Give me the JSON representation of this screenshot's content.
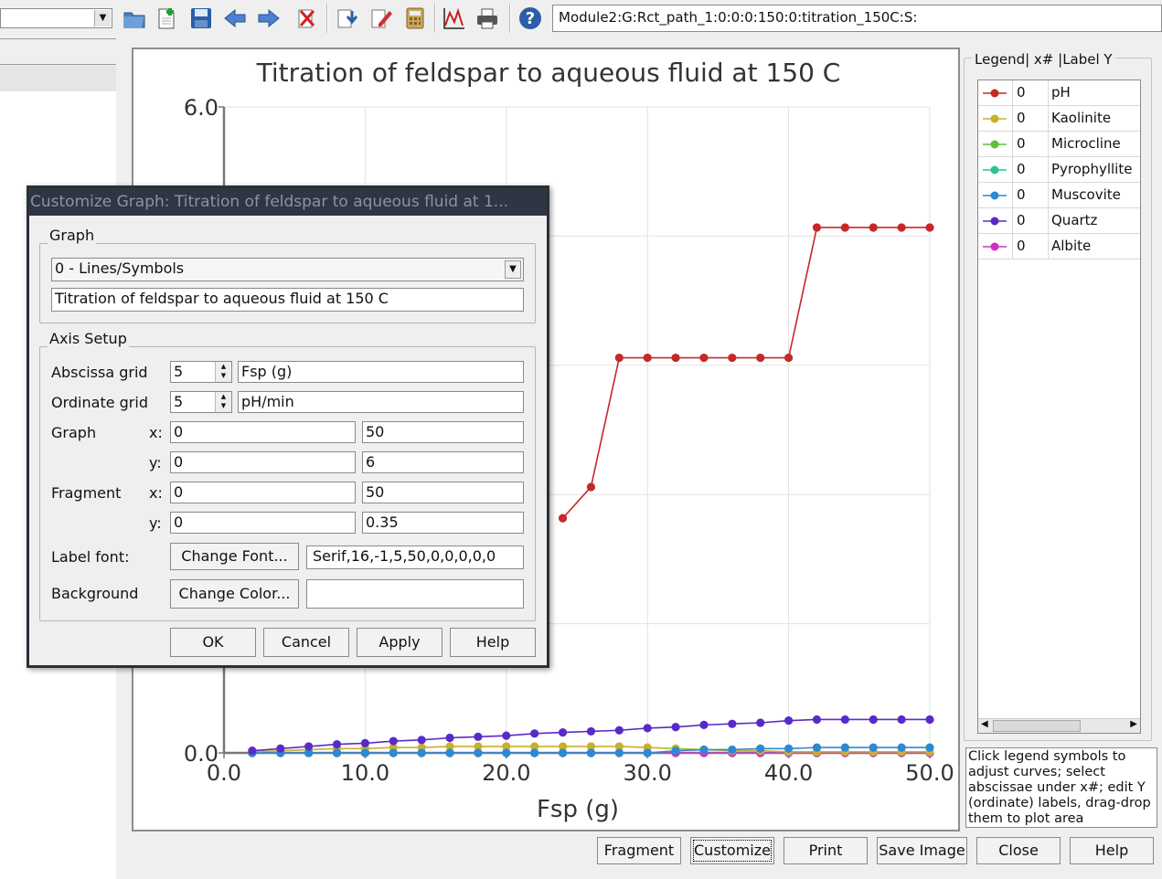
{
  "toolbar": {
    "path": "Module2:G:Rct_path_1:0:0:0:150:0:titration_150C:S:"
  },
  "chart_data": {
    "type": "line",
    "title": "Titration of feldspar to aqueous fluid at 150 C",
    "xlabel": "Fsp (g)",
    "ylabel": "",
    "xlim": [
      0,
      50
    ],
    "ylim": [
      0,
      6
    ],
    "x_ticks": [
      "0.0",
      "10.0",
      "20.0",
      "30.0",
      "40.0",
      "50.0"
    ],
    "y_ticks": [
      "0.0",
      "6.0"
    ],
    "grid": true,
    "x": [
      2,
      4,
      6,
      8,
      10,
      12,
      14,
      16,
      18,
      20,
      22,
      24,
      26,
      28,
      30,
      32,
      34,
      36,
      38,
      40,
      42,
      44,
      46,
      48,
      50
    ],
    "series": [
      {
        "name": "pH",
        "color": "#c62828",
        "values": [
          null,
          null,
          null,
          null,
          null,
          null,
          null,
          null,
          null,
          null,
          null,
          2.18,
          2.47,
          3.67,
          3.67,
          3.67,
          3.67,
          3.67,
          3.67,
          3.67,
          4.88,
          4.88,
          4.88,
          4.88,
          4.88
        ]
      },
      {
        "name": "Kaolinite",
        "color": "#c8b030",
        "values": [
          0.01,
          0.02,
          0.03,
          0.04,
          0.04,
          0.05,
          0.05,
          0.06,
          0.06,
          0.06,
          0.06,
          0.06,
          0.06,
          0.06,
          0.05,
          0.04,
          0.03,
          0.02,
          0.02,
          0.01,
          0.01,
          0.01,
          0.01,
          0.01,
          0.01
        ]
      },
      {
        "name": "Microcline",
        "color": "#5cc040",
        "values": [
          0.0,
          0.0,
          0.0,
          0.0,
          0.0,
          0.0,
          0.0,
          0.0,
          0.0,
          0.0,
          0.0,
          0.0,
          0.0,
          0.0,
          0.0,
          0.0,
          0.0,
          0.0,
          0.0,
          0.0,
          0.0,
          0.0,
          0.0,
          0.0,
          0.0
        ]
      },
      {
        "name": "Pyrophyllite",
        "color": "#2ec48c",
        "values": [
          0.0,
          0.0,
          0.0,
          0.0,
          0.0,
          0.0,
          0.0,
          0.0,
          0.0,
          0.0,
          0.0,
          0.0,
          0.0,
          0.0,
          0.0,
          0.0,
          0.0,
          0.0,
          0.0,
          0.0,
          0.0,
          0.0,
          0.0,
          0.0,
          0.0
        ]
      },
      {
        "name": "Muscovite",
        "color": "#2a8ad4",
        "values": [
          0.0,
          0.0,
          0.0,
          0.0,
          0.0,
          0.0,
          0.0,
          0.0,
          0.0,
          0.0,
          0.0,
          0.0,
          0.0,
          0.0,
          0.0,
          0.02,
          0.03,
          0.03,
          0.04,
          0.04,
          0.05,
          0.05,
          0.05,
          0.05,
          0.05
        ]
      },
      {
        "name": "Quartz",
        "color": "#5a2ac8",
        "values": [
          0.02,
          0.04,
          0.06,
          0.08,
          0.09,
          0.11,
          0.12,
          0.14,
          0.15,
          0.16,
          0.18,
          0.19,
          0.2,
          0.21,
          0.23,
          0.24,
          0.26,
          0.27,
          0.28,
          0.3,
          0.31,
          0.31,
          0.31,
          0.31,
          0.31
        ]
      },
      {
        "name": "Albite",
        "color": "#d030c8",
        "values": [
          0.0,
          0.0,
          0.0,
          0.0,
          0.0,
          0.0,
          0.0,
          0.0,
          0.0,
          0.0,
          0.0,
          0.0,
          0.0,
          0.0,
          0.0,
          0.0,
          0.0,
          0.0,
          0.0,
          0.0,
          0.0,
          0.0,
          0.0,
          0.0,
          0.0
        ]
      }
    ]
  },
  "legend": {
    "title": "Legend| x# |Label Y",
    "rows": [
      {
        "x": "0",
        "label": "pH",
        "color": "#c62828"
      },
      {
        "x": "0",
        "label": "Kaolinite",
        "color": "#c8b030"
      },
      {
        "x": "0",
        "label": "Microcline",
        "color": "#5cc040"
      },
      {
        "x": "0",
        "label": "Pyrophyllite",
        "color": "#2ec48c"
      },
      {
        "x": "0",
        "label": "Muscovite",
        "color": "#2a8ad4"
      },
      {
        "x": "0",
        "label": "Quartz",
        "color": "#5a2ac8"
      },
      {
        "x": "0",
        "label": "Albite",
        "color": "#d030c8"
      }
    ],
    "help": "Click legend symbols to adjust curves; select abscissae under x#; edit Y (ordinate) labels, drag-drop them to plot area"
  },
  "buttons": {
    "fragment": "Fragment",
    "customize": "Customize",
    "print": "Print",
    "save_image": "Save Image",
    "close": "Close",
    "help": "Help"
  },
  "dialog": {
    "title": "Customize Graph: Titration of feldspar to aqueous fluid at 1...",
    "graph_group": "Graph",
    "graph_type": "0 - Lines/Symbols",
    "graph_title": "Titration of feldspar to aqueous fluid at 150 C",
    "axis_group": "Axis Setup",
    "abscissa_label": "Abscissa grid",
    "abscissa_grid": "5",
    "abscissa_name": "Fsp (g)",
    "ordinate_label": "Ordinate grid",
    "ordinate_grid": "5",
    "ordinate_name": "pH/min",
    "graph_label": "Graph",
    "x_label": "x:",
    "y_label": "y:",
    "graph_x_min": "0",
    "graph_x_max": "50",
    "graph_y_min": "0",
    "graph_y_max": "6",
    "fragment_label": "Fragment",
    "frag_x_min": "0",
    "frag_x_max": "50",
    "frag_y_min": "0",
    "frag_y_max": "0.35",
    "label_font_label": "Label font:",
    "change_font": "Change Font...",
    "font_value": "Serif,16,-1,5,50,0,0,0,0,0",
    "background_label": "Background",
    "change_color": "Change Color...",
    "ok": "OK",
    "cancel": "Cancel",
    "apply": "Apply",
    "help": "Help"
  }
}
